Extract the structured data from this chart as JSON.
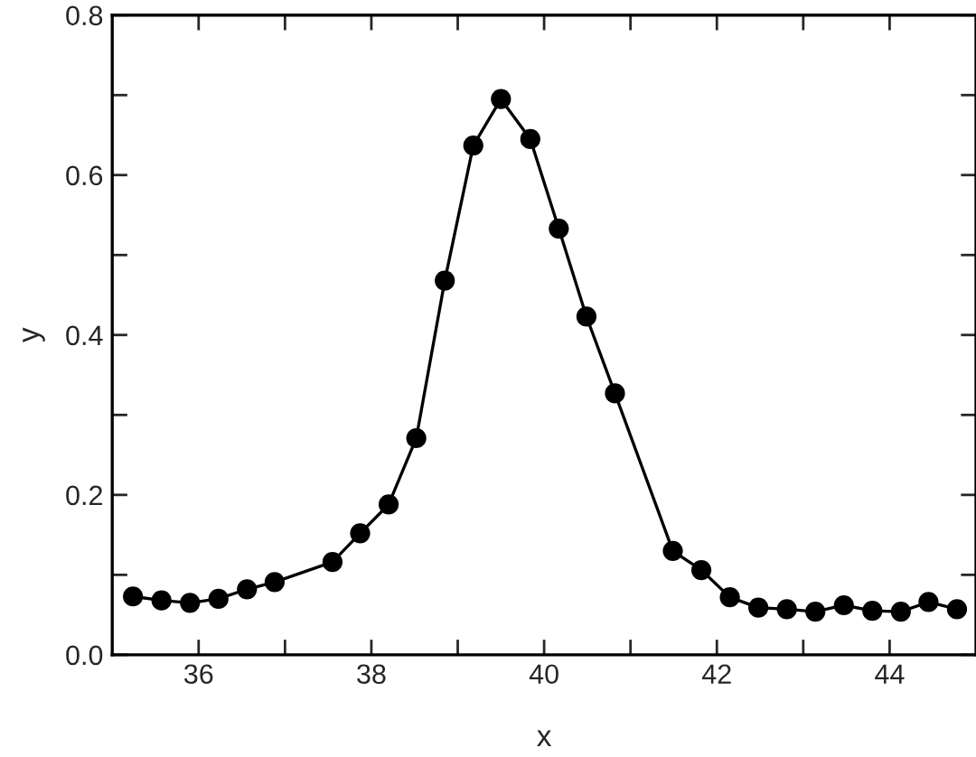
{
  "chart_data": {
    "type": "line",
    "xlabel": "x",
    "ylabel": "y",
    "x": [
      35.24,
      35.57,
      35.9,
      36.23,
      36.56,
      36.88,
      37.55,
      37.87,
      38.2,
      38.52,
      38.85,
      39.18,
      39.5,
      39.84,
      40.17,
      40.49,
      40.82,
      41.49,
      41.82,
      42.15,
      42.48,
      42.81,
      43.14,
      43.47,
      43.8,
      44.13,
      44.45,
      44.78
    ],
    "series": [
      {
        "color": "#000000",
        "values": [
          0.073,
          0.068,
          0.065,
          0.07,
          0.082,
          0.091,
          0.116,
          0.152,
          0.188,
          0.271,
          0.468,
          0.637,
          0.695,
          0.645,
          0.533,
          0.423,
          0.327,
          0.13,
          0.106,
          0.072,
          0.059,
          0.057,
          0.054,
          0.062,
          0.055,
          0.054,
          0.066,
          0.057
        ]
      }
    ],
    "xlim": [
      35,
      45
    ],
    "ylim": [
      0,
      0.8
    ],
    "xticks": [
      36,
      {
        "value": 37,
        "label": null
      },
      38,
      {
        "value": 39,
        "label": null
      },
      40,
      {
        "value": 41,
        "label": null
      },
      42,
      {
        "value": 43,
        "label": null
      },
      44
    ],
    "yticks": [
      {
        "value": 0,
        "label": "0.0"
      },
      {
        "value": 0.1,
        "label": null
      },
      {
        "value": 0.2,
        "label": "0.2"
      },
      {
        "value": 0.3,
        "label": null
      },
      {
        "value": 0.4,
        "label": "0.4"
      },
      {
        "value": 0.5,
        "label": null
      },
      {
        "value": 0.6,
        "label": "0.6"
      },
      {
        "value": 0.7,
        "label": null
      },
      {
        "value": 0.8,
        "label": "0.8"
      }
    ],
    "marker": "circle",
    "line_style": "solid",
    "grid": false,
    "legend": false
  }
}
